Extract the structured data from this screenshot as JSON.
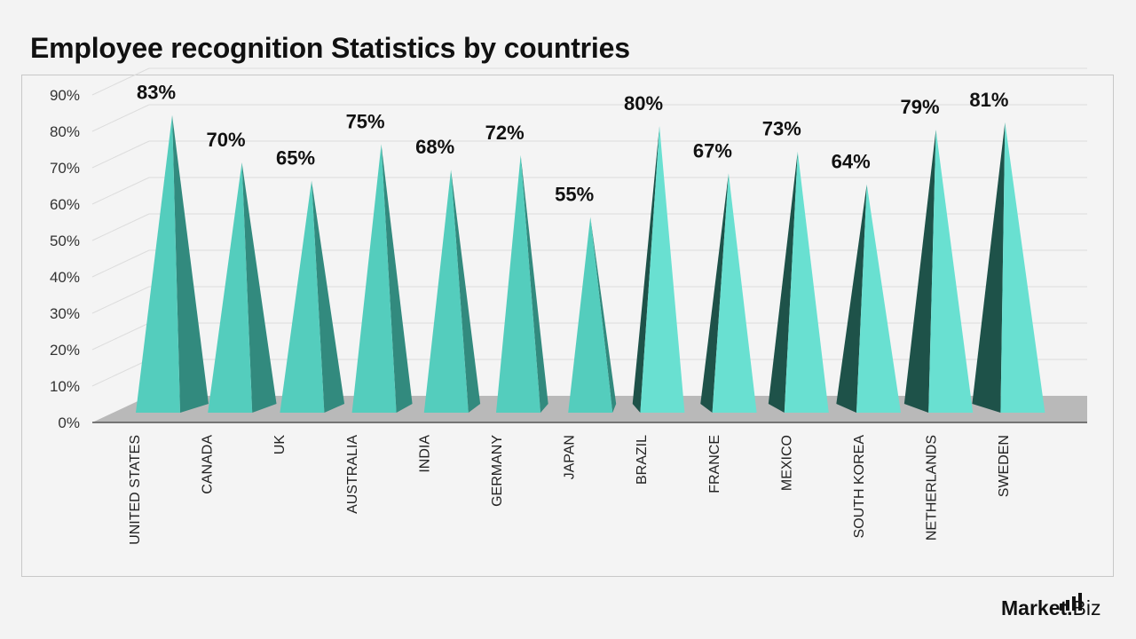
{
  "title": "Employee recognition Statistics by countries",
  "logo": {
    "brand": "Market",
    "dot": ".",
    "suffix": "Biz"
  },
  "colors": {
    "pyramid_front": "#54cdbd",
    "pyramid_front_light": "#69e0d1",
    "pyramid_side": "#328a7e",
    "pyramid_side_dark": "#1e5249",
    "floor": "#b9b9b9",
    "grid": "#dcdcdc",
    "label": "#111111",
    "axis_text": "#333333"
  },
  "chart_data": {
    "type": "bar",
    "title": "Employee recognition Statistics by countries",
    "categories": [
      "UNITED STATES",
      "CANADA",
      "UK",
      "AUSTRALIA",
      "INDIA",
      "GERMANY",
      "JAPAN",
      "BRAZIL",
      "FRANCE",
      "MEXICO",
      "SOUTH KOREA",
      "NETHERLANDS",
      "SWEDEN"
    ],
    "values": [
      83,
      70,
      65,
      75,
      68,
      72,
      55,
      80,
      67,
      73,
      64,
      79,
      81
    ],
    "data_labels": [
      "83%",
      "70%",
      "65%",
      "75%",
      "68%",
      "72%",
      "55%",
      "80%",
      "67%",
      "73%",
      "64%",
      "79%",
      "81%"
    ],
    "yticks": [
      "0%",
      "10%",
      "20%",
      "30%",
      "40%",
      "50%",
      "60%",
      "70%",
      "80%",
      "90%"
    ],
    "ylim": [
      0,
      90
    ],
    "grid": true,
    "legend": "none",
    "style": "3d-pyramid"
  }
}
